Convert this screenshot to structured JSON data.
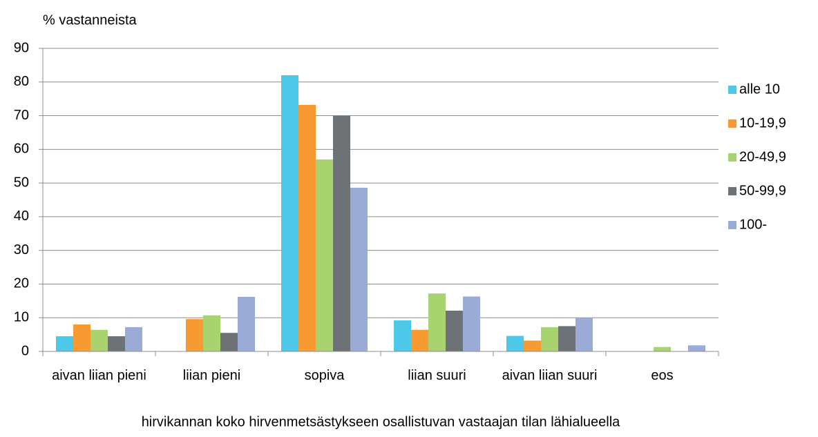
{
  "chart_data": {
    "type": "bar",
    "ylabel": "% vastanneista",
    "xlabel": "hirvikannan koko hirvenmetsästykseen osallistuvan vastaajan tilan lähialueella",
    "categories": [
      "aivan liian pieni",
      "liian pieni",
      "sopiva",
      "liian suuri",
      "aivan liian suuri",
      "eos"
    ],
    "series": [
      {
        "name": "alle 10",
        "color": "#4dc8e8",
        "values": [
          4.5,
          0,
          82,
          9.2,
          4.6,
          0
        ]
      },
      {
        "name": "10-19,9",
        "color": "#f79a33",
        "values": [
          8,
          9.6,
          73.2,
          6.4,
          3.2,
          0
        ]
      },
      {
        "name": "20-49,9",
        "color": "#a9d36f",
        "values": [
          6.4,
          10.7,
          57,
          17.2,
          7.2,
          1.3
        ]
      },
      {
        "name": "50-99,9",
        "color": "#6d7276",
        "values": [
          4.5,
          5.5,
          70,
          12.1,
          7.5,
          0
        ]
      },
      {
        "name": "100-",
        "color": "#9aacd6",
        "values": [
          7.2,
          16.2,
          48.6,
          16.3,
          10,
          1.8
        ]
      }
    ],
    "ylim": [
      0,
      90
    ],
    "yticks": [
      0,
      10,
      20,
      30,
      40,
      50,
      60,
      70,
      80,
      90
    ],
    "grid": true,
    "legend": "right"
  }
}
